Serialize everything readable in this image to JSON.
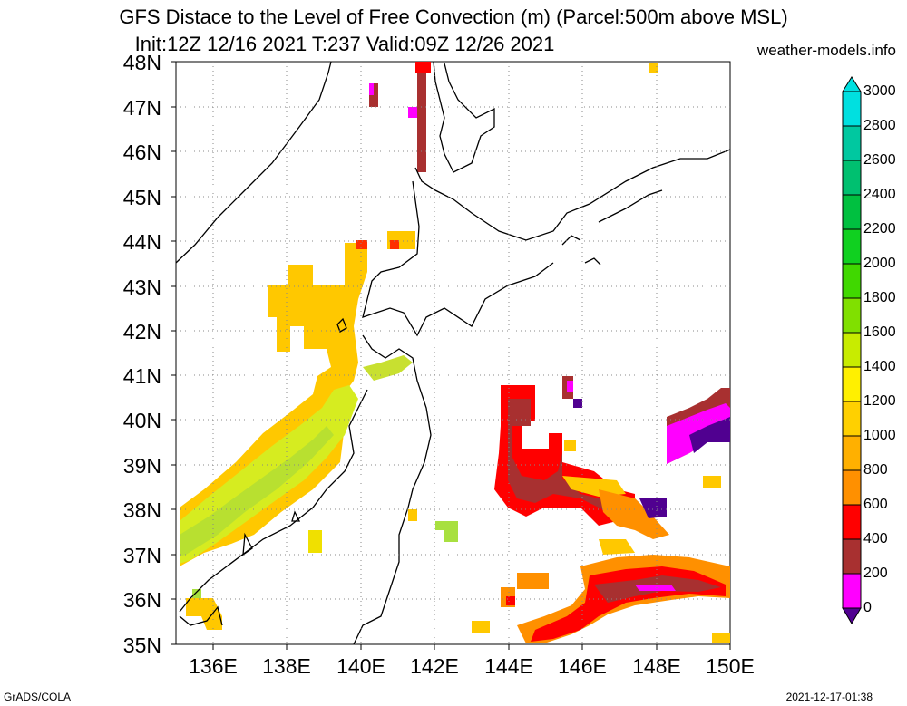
{
  "title": {
    "line1": "GFS Distace to the Level of Free Convection (m) (Parcel:500m above MSL)",
    "line2": "Init:12Z 12/16 2021 T:237 Valid:09Z 12/26 2021",
    "site": "weather-models.info"
  },
  "map": {
    "lat_labels": [
      "48N",
      "47N",
      "46N",
      "45N",
      "44N",
      "43N",
      "42N",
      "41N",
      "40N",
      "39N",
      "38N",
      "37N",
      "36N",
      "35N"
    ],
    "lon_labels": [
      "136E",
      "138E",
      "140E",
      "142E",
      "144E",
      "146E",
      "148E",
      "150E"
    ],
    "lat_range": [
      35,
      48
    ],
    "lon_range": [
      135,
      150
    ],
    "grid": "dotted"
  },
  "colorbar": {
    "labels": [
      "3000",
      "2800",
      "2600",
      "2400",
      "2200",
      "2000",
      "1800",
      "1600",
      "1400",
      "1200",
      "1000",
      "800",
      "600",
      "400",
      "200",
      "0"
    ],
    "colors": [
      "#00e0e0",
      "#00c8a0",
      "#00c070",
      "#00c040",
      "#10d020",
      "#40d800",
      "#80e000",
      "#c8ec00",
      "#fff000",
      "#ffd000",
      "#ffb000",
      "#ff9000",
      "#ff0000",
      "#a83030",
      "#ff00ff",
      "#500090"
    ]
  },
  "footer": {
    "credit": "GrADS/COLA",
    "timestamp": "2021-12-17-01:38"
  }
}
